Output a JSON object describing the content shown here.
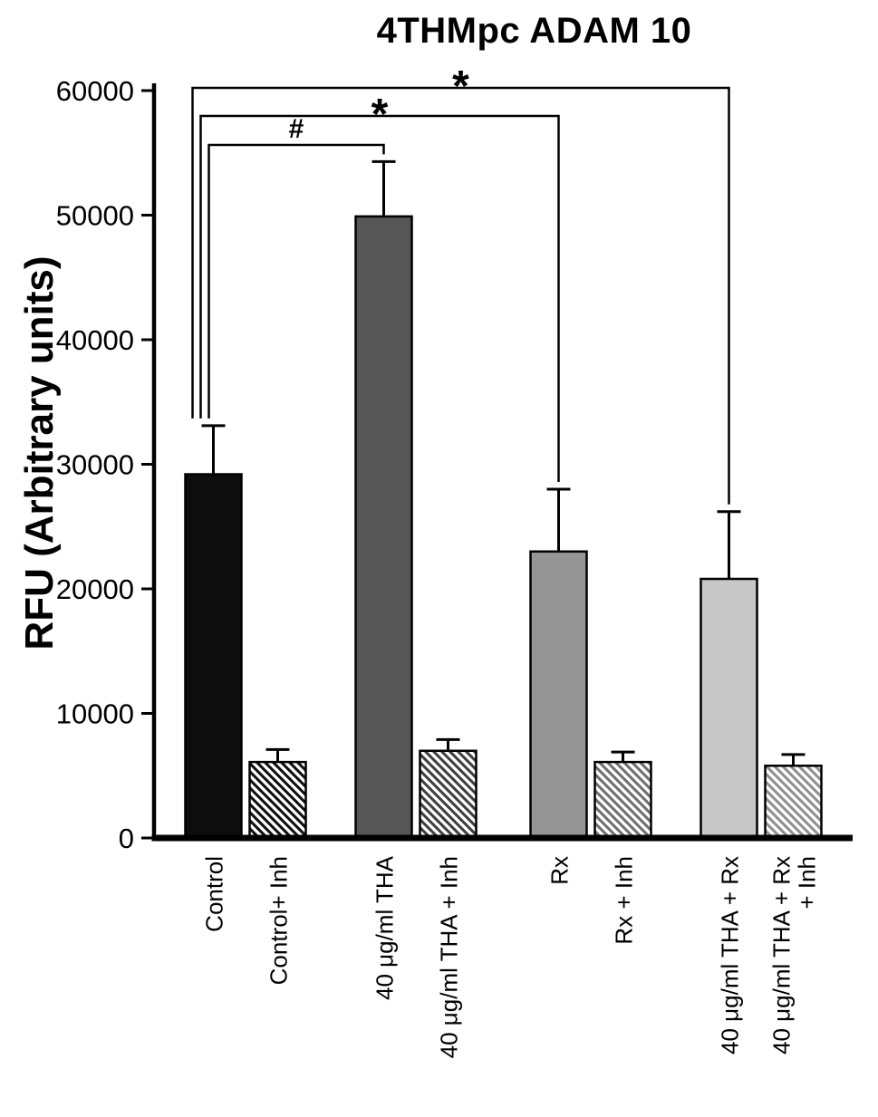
{
  "chart_data": {
    "type": "bar",
    "title": "4THMpc ADAM 10",
    "ylabel": "RFU (Arbitrary units)",
    "ylim": [
      0,
      60000
    ],
    "yticks": [
      0,
      10000,
      20000,
      30000,
      40000,
      50000,
      60000
    ],
    "grid": false,
    "legend": false,
    "categories": [
      "Control",
      "Control+ Inh",
      "40 μg/ml THA",
      "40 μg/ml THA + Inh",
      "Rx",
      "Rx + Inh",
      "40 μg/ml THA + Rx",
      "40 μg/ml THA + Rx\n+ Inh"
    ],
    "values": [
      29200,
      6100,
      49900,
      7000,
      23000,
      6100,
      20800,
      5800
    ],
    "errors_plus": [
      3900,
      1000,
      4400,
      900,
      5000,
      800,
      5400,
      900
    ],
    "bar_styles": [
      {
        "fill": "#0d0d0d",
        "hatch": false,
        "hatch_color": "#0d0d0d"
      },
      {
        "fill": "#ffffff",
        "hatch": true,
        "hatch_color": "#0d0d0d"
      },
      {
        "fill": "#565656",
        "hatch": false,
        "hatch_color": "#565656"
      },
      {
        "fill": "#ffffff",
        "hatch": true,
        "hatch_color": "#3d3d3d"
      },
      {
        "fill": "#959595",
        "hatch": false,
        "hatch_color": "#959595"
      },
      {
        "fill": "#ffffff",
        "hatch": true,
        "hatch_color": "#6f6f6f"
      },
      {
        "fill": "#c7c7c7",
        "hatch": false,
        "hatch_color": "#c7c7c7"
      },
      {
        "fill": "#ffffff",
        "hatch": true,
        "hatch_color": "#8f8f8f"
      }
    ],
    "significance": [
      {
        "label": "*",
        "from": 0,
        "to": 6,
        "level": 0
      },
      {
        "label": "*",
        "from": 0,
        "to": 4,
        "level": 1
      },
      {
        "label": "#",
        "from": 0,
        "to": 2,
        "level": 2
      }
    ],
    "axis_color": "#000000",
    "bar_outline_color": "#000000"
  }
}
